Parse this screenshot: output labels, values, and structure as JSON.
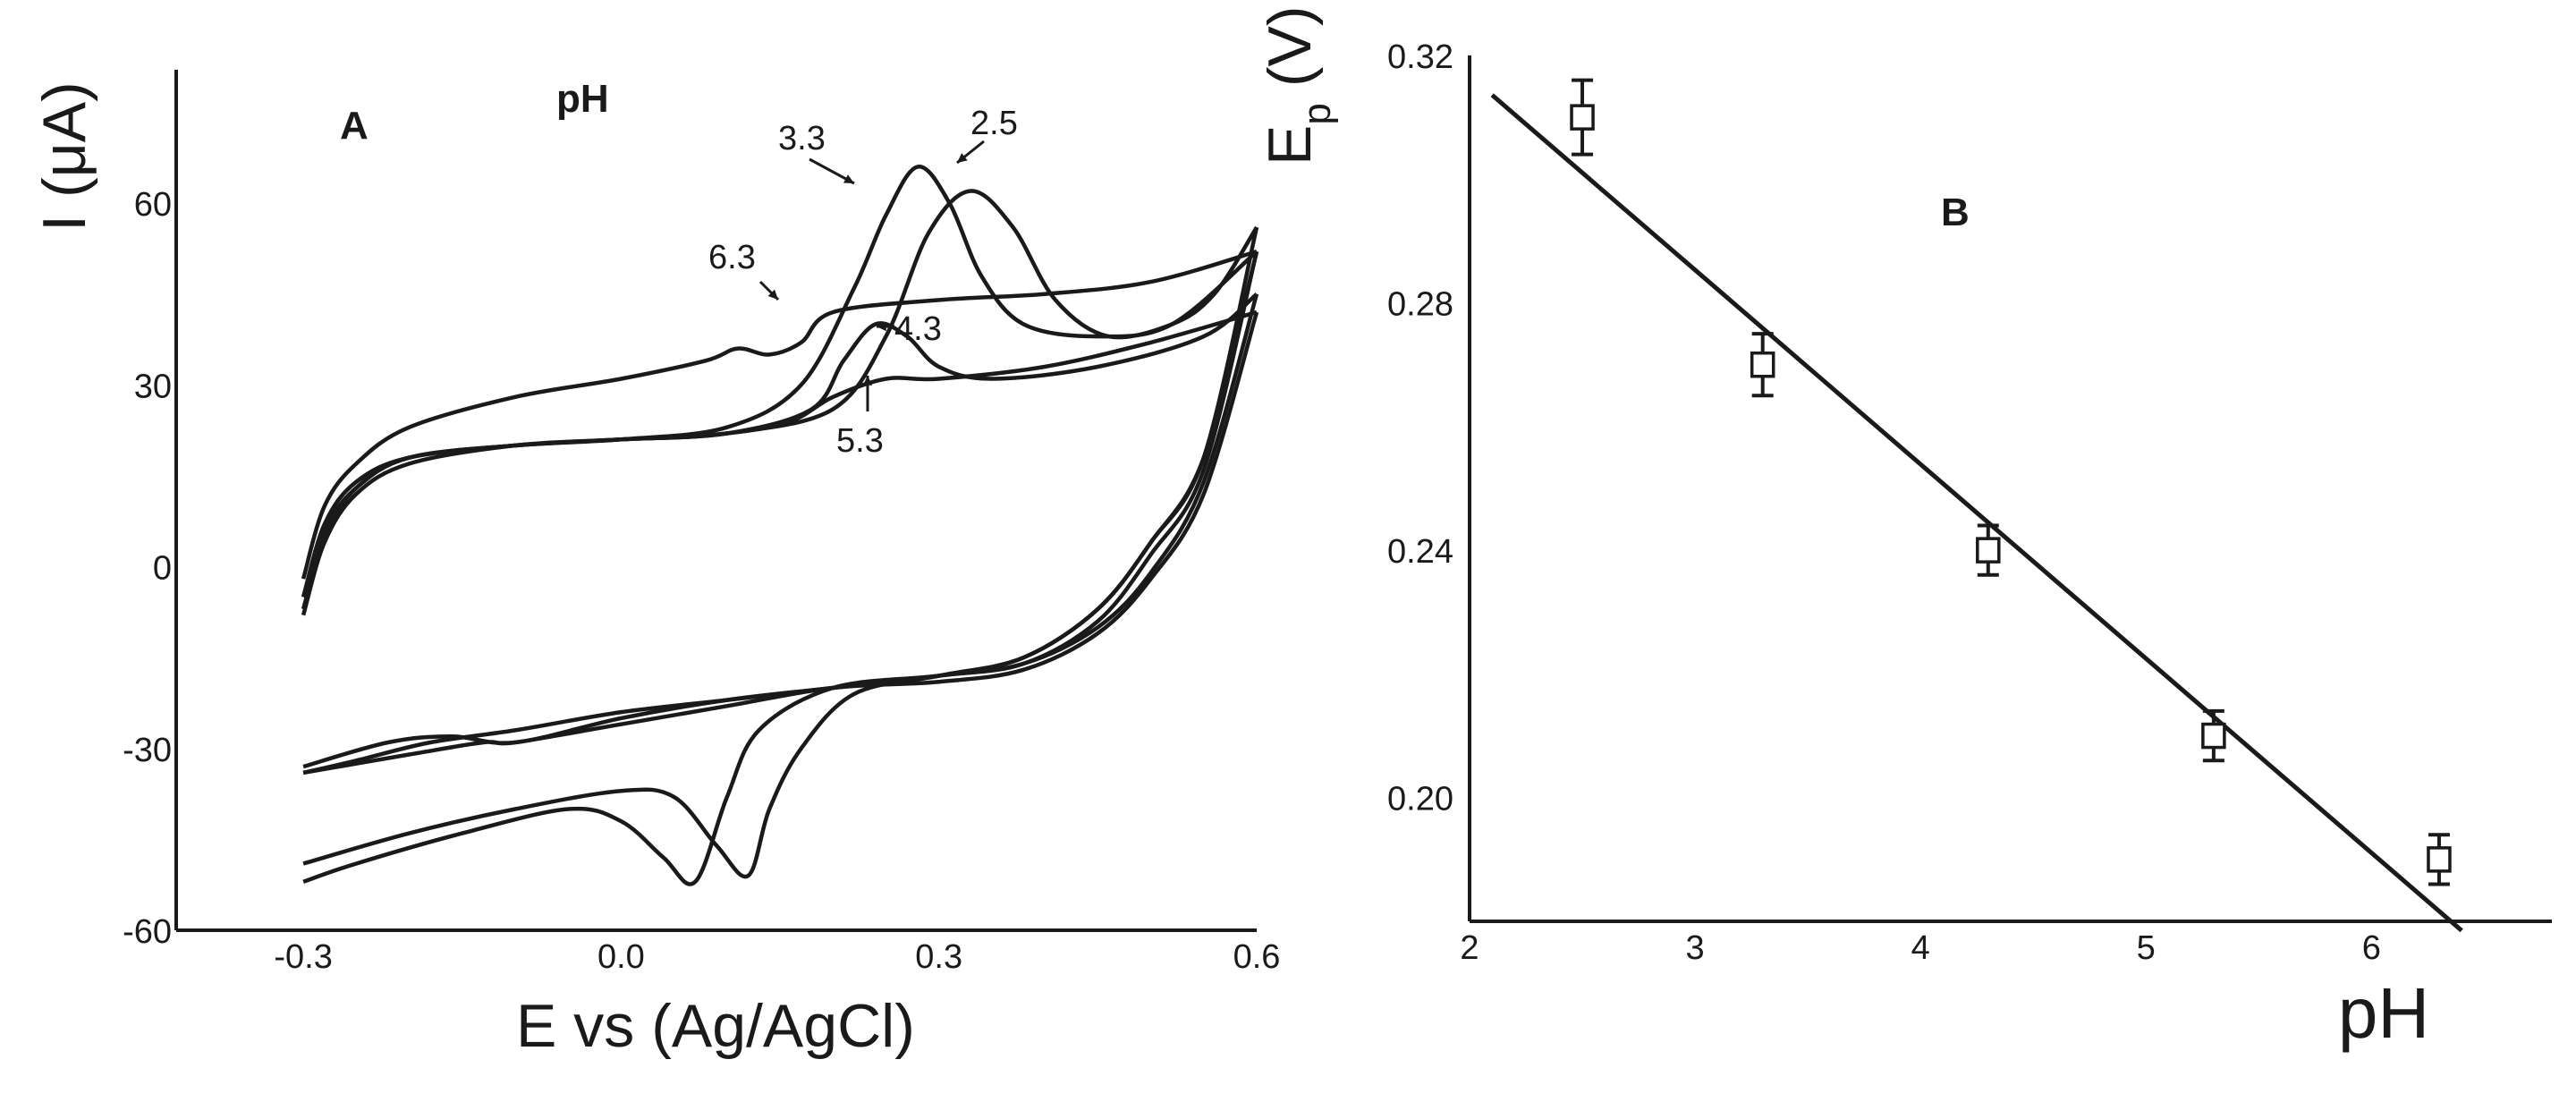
{
  "chart_data": [
    {
      "type": "line",
      "panel_label": "A",
      "legend_title": "pH",
      "xlabel": "E vs (Ag/AgCl)",
      "ylabel": "I (μA)",
      "xlim": [
        -0.42,
        0.6
      ],
      "ylim": [
        -60,
        82
      ],
      "xticks": [
        -0.3,
        0.0,
        0.3,
        0.6
      ],
      "xtick_labels": [
        "-0.3",
        "0.0",
        "0.3",
        "0.6"
      ],
      "yticks": [
        60,
        30,
        0,
        -30,
        -60
      ],
      "ytick_labels": [
        "60",
        "30",
        "0",
        "-30",
        "-60"
      ],
      "grid": false,
      "series": [
        {
          "name": "2.5",
          "anodic": [
            [
              -0.3,
              -8
            ],
            [
              -0.28,
              4
            ],
            [
              -0.25,
              12
            ],
            [
              -0.2,
              17
            ],
            [
              -0.1,
              20
            ],
            [
              0.0,
              21
            ],
            [
              0.1,
              22
            ],
            [
              0.2,
              26
            ],
            [
              0.25,
              38
            ],
            [
              0.29,
              55
            ],
            [
              0.33,
              62
            ],
            [
              0.37,
              56
            ],
            [
              0.41,
              44
            ],
            [
              0.46,
              38
            ],
            [
              0.52,
              40
            ],
            [
              0.56,
              45
            ],
            [
              0.6,
              56
            ]
          ],
          "cathodic": [
            [
              0.6,
              56
            ],
            [
              0.55,
              18
            ],
            [
              0.5,
              4
            ],
            [
              0.45,
              -7
            ],
            [
              0.38,
              -15
            ],
            [
              0.3,
              -18
            ],
            [
              0.22,
              -21
            ],
            [
              0.17,
              -30
            ],
            [
              0.14,
              -40
            ],
            [
              0.12,
              -51
            ],
            [
              0.09,
              -46
            ],
            [
              0.05,
              -38
            ],
            [
              0.0,
              -37
            ],
            [
              -0.1,
              -40
            ],
            [
              -0.2,
              -44
            ],
            [
              -0.3,
              -49
            ]
          ]
        },
        {
          "name": "3.3",
          "anodic": [
            [
              -0.3,
              -7
            ],
            [
              -0.28,
              5
            ],
            [
              -0.25,
              13
            ],
            [
              -0.2,
              18
            ],
            [
              -0.1,
              20
            ],
            [
              0.0,
              21
            ],
            [
              0.1,
              23
            ],
            [
              0.17,
              30
            ],
            [
              0.22,
              46
            ],
            [
              0.25,
              58
            ],
            [
              0.28,
              66
            ],
            [
              0.31,
              60
            ],
            [
              0.34,
              48
            ],
            [
              0.38,
              40
            ],
            [
              0.45,
              38
            ],
            [
              0.52,
              40
            ],
            [
              0.6,
              52
            ]
          ],
          "cathodic": [
            [
              0.6,
              52
            ],
            [
              0.55,
              16
            ],
            [
              0.5,
              2
            ],
            [
              0.45,
              -9
            ],
            [
              0.38,
              -16
            ],
            [
              0.3,
              -18
            ],
            [
              0.2,
              -20
            ],
            [
              0.13,
              -27
            ],
            [
              0.1,
              -38
            ],
            [
              0.07,
              -52
            ],
            [
              0.04,
              -48
            ],
            [
              0.0,
              -42
            ],
            [
              -0.05,
              -40
            ],
            [
              -0.15,
              -44
            ],
            [
              -0.25,
              -49
            ],
            [
              -0.3,
              -52
            ]
          ]
        },
        {
          "name": "4.3",
          "anodic": [
            [
              -0.3,
              -5
            ],
            [
              -0.28,
              6
            ],
            [
              -0.25,
              13
            ],
            [
              -0.2,
              18
            ],
            [
              -0.1,
              20
            ],
            [
              0.0,
              21
            ],
            [
              0.1,
              22
            ],
            [
              0.18,
              26
            ],
            [
              0.21,
              34
            ],
            [
              0.24,
              40
            ],
            [
              0.27,
              38
            ],
            [
              0.3,
              33
            ],
            [
              0.35,
              31
            ],
            [
              0.45,
              33
            ],
            [
              0.55,
              38
            ],
            [
              0.6,
              45
            ]
          ],
          "cathodic": [
            [
              0.6,
              45
            ],
            [
              0.55,
              14
            ],
            [
              0.5,
              -1
            ],
            [
              0.45,
              -10
            ],
            [
              0.38,
              -16
            ],
            [
              0.3,
              -18
            ],
            [
              0.2,
              -20
            ],
            [
              0.1,
              -22
            ],
            [
              0.0,
              -24
            ],
            [
              -0.1,
              -27
            ],
            [
              -0.18,
              -29
            ],
            [
              -0.25,
              -32
            ],
            [
              -0.3,
              -34
            ]
          ]
        },
        {
          "name": "5.3",
          "anodic": [
            [
              -0.3,
              -5
            ],
            [
              -0.28,
              7
            ],
            [
              -0.25,
              14
            ],
            [
              -0.2,
              18
            ],
            [
              -0.1,
              20
            ],
            [
              0.0,
              21
            ],
            [
              0.1,
              22
            ],
            [
              0.16,
              24
            ],
            [
              0.2,
              28
            ],
            [
              0.25,
              31
            ],
            [
              0.3,
              31
            ],
            [
              0.4,
              33
            ],
            [
              0.5,
              37
            ],
            [
              0.6,
              42
            ]
          ],
          "cathodic": [
            [
              0.6,
              42
            ],
            [
              0.55,
              12
            ],
            [
              0.5,
              -2
            ],
            [
              0.45,
              -11
            ],
            [
              0.38,
              -17
            ],
            [
              0.3,
              -19
            ],
            [
              0.2,
              -20
            ],
            [
              0.1,
              -23
            ],
            [
              0.0,
              -26
            ],
            [
              -0.1,
              -29
            ],
            [
              -0.13,
              -29
            ],
            [
              -0.2,
              -31
            ],
            [
              -0.3,
              -34
            ]
          ]
        },
        {
          "name": "6.3",
          "anodic": [
            [
              -0.3,
              -2
            ],
            [
              -0.28,
              10
            ],
            [
              -0.25,
              17
            ],
            [
              -0.2,
              23
            ],
            [
              -0.1,
              28
            ],
            [
              0.0,
              31
            ],
            [
              0.08,
              34
            ],
            [
              0.11,
              36
            ],
            [
              0.14,
              35
            ],
            [
              0.17,
              37
            ],
            [
              0.2,
              42
            ],
            [
              0.3,
              44
            ],
            [
              0.4,
              45
            ],
            [
              0.5,
              47
            ],
            [
              0.6,
              52
            ]
          ],
          "cathodic": [
            [
              0.6,
              52
            ],
            [
              0.55,
              18
            ],
            [
              0.5,
              4
            ],
            [
              0.45,
              -7
            ],
            [
              0.38,
              -15
            ],
            [
              0.3,
              -18
            ],
            [
              0.2,
              -20
            ],
            [
              0.1,
              -22
            ],
            [
              0.0,
              -25
            ],
            [
              -0.1,
              -29
            ],
            [
              -0.16,
              -28
            ],
            [
              -0.22,
              -29
            ],
            [
              -0.3,
              -33
            ]
          ]
        }
      ],
      "annotations": [
        {
          "text": "3.3",
          "series": "3.3",
          "peak": [
            0.28,
            66
          ]
        },
        {
          "text": "2.5",
          "series": "2.5",
          "peak": [
            0.33,
            62
          ]
        },
        {
          "text": "6.3",
          "series": "6.3",
          "peak": [
            0.14,
            35
          ]
        },
        {
          "text": "4.3",
          "series": "4.3",
          "peak": [
            0.25,
            39
          ]
        },
        {
          "text": "5.3",
          "series": "5.3",
          "peak": [
            0.22,
            28
          ]
        }
      ]
    },
    {
      "type": "scatter",
      "panel_label": "B",
      "xlabel": "pH",
      "ylabel": "E_p (V)",
      "ylabel_main": "E",
      "ylabel_sub": "p",
      "ylabel_unit": "(V)",
      "xlim": [
        2,
        6.8
      ],
      "ylim": [
        0.18,
        0.32
      ],
      "xticks": [
        2,
        3,
        4,
        5,
        6
      ],
      "xtick_labels": [
        "2",
        "3",
        "4",
        "5",
        "6"
      ],
      "yticks": [
        0.32,
        0.28,
        0.24,
        0.2
      ],
      "ytick_labels": [
        "0.32",
        "0.28",
        "0.24",
        "0.20"
      ],
      "grid": false,
      "points": [
        {
          "x": 2.5,
          "y": 0.31,
          "err": 0.006
        },
        {
          "x": 3.3,
          "y": 0.27,
          "err": 0.005
        },
        {
          "x": 4.3,
          "y": 0.24,
          "err": 0.004
        },
        {
          "x": 5.3,
          "y": 0.21,
          "err": 0.004
        },
        {
          "x": 6.3,
          "y": 0.19,
          "err": 0.004
        }
      ],
      "fit_line": {
        "x": [
          2.1,
          6.4
        ],
        "y": [
          0.3136,
          0.1785
        ]
      }
    }
  ]
}
